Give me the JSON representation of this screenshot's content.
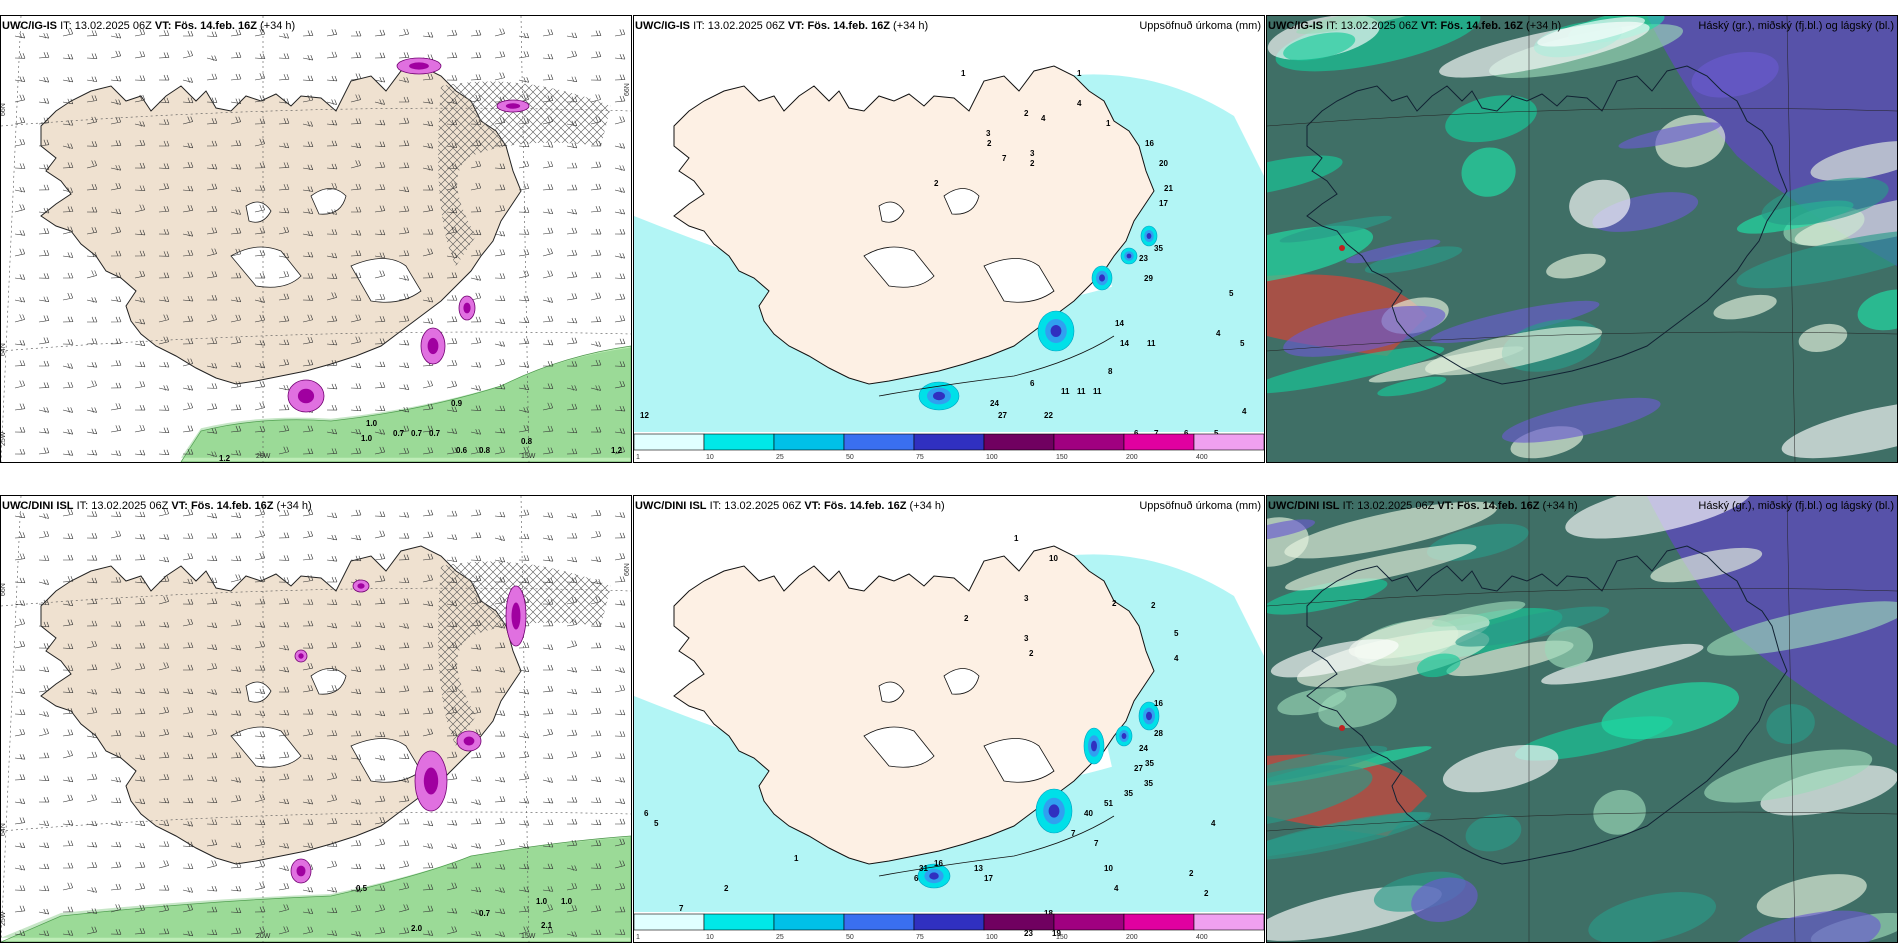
{
  "rows": [
    {
      "model": "UWC/IG-IS",
      "it_label": "IT:",
      "it_value": "13.02.2025 06Z",
      "vt_label": "VT:",
      "vt_value": "Fös. 14.feb. 16Z",
      "lead": "(+34 h)"
    },
    {
      "model": "UWC/DINI ISL",
      "it_label": "IT:",
      "it_value": "13.02.2025 06Z",
      "vt_label": "VT:",
      "vt_value": "Fös. 14.feb. 16Z",
      "lead": "(+34 h)"
    }
  ],
  "precip_title": "Uppsöfnuð úrkoma (mm)",
  "cloud_title": "Háský (gr.), miðský (fj.bl.) og lágský (bl.)",
  "colorbar": {
    "levels": [
      "1",
      "10",
      "25",
      "50",
      "75",
      "100",
      "150",
      "200",
      "400"
    ],
    "colors": [
      "#e0ffff",
      "#00e8e8",
      "#00c0e8",
      "#3a6ff0",
      "#3030c0",
      "#700060",
      "#a00080",
      "#e000a0",
      "#f0a0f0"
    ]
  },
  "axis_labels": {
    "lat66": "66N",
    "lat64": "64N",
    "lat63": "63N",
    "lon25": "25W",
    "lon20": "20W",
    "lon15": "15W"
  },
  "wind_labels_top": [
    "1.0",
    "0.9",
    "1.0",
    "0.7",
    "0.7",
    "0.7",
    "0.6",
    "0.8",
    "0.8",
    "1.2",
    "1.2"
  ],
  "wind_labels_bottom": [
    "0.5",
    "0.7",
    "1.0",
    "1.0",
    "2.0",
    "2.1"
  ],
  "precip_numbers_top": [
    "1",
    "1",
    "2",
    "2",
    "2",
    "3",
    "2",
    "4",
    "4",
    "3",
    "7",
    "1",
    "16",
    "20",
    "21",
    "17",
    "35",
    "23",
    "29",
    "14",
    "14",
    "11",
    "11",
    "11",
    "11",
    "8",
    "6",
    "12",
    "27",
    "24",
    "22",
    "6",
    "7",
    "6",
    "5",
    "4",
    "5",
    "4",
    "5"
  ],
  "precip_numbers_bottom": [
    "1",
    "10",
    "2",
    "3",
    "3",
    "2",
    "2",
    "2",
    "5",
    "4",
    "16",
    "28",
    "24",
    "35",
    "27",
    "35",
    "35",
    "51",
    "40",
    "7",
    "7",
    "10",
    "4",
    "6",
    "18",
    "19",
    "23",
    "31",
    "13",
    "17",
    "16",
    "1",
    "2",
    "7",
    "6",
    "5",
    "18",
    "2",
    "2",
    "4"
  ]
}
